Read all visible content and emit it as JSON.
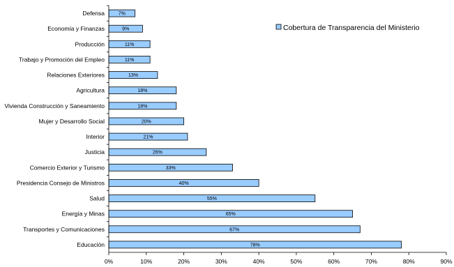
{
  "chart_data": {
    "type": "bar",
    "orientation": "horizontal",
    "categories": [
      "Defensa",
      "Economía y Finanzas",
      "Producción",
      "Trabajo y Promoción del Empleo",
      "Relaciones Exteriores",
      "Agricultura",
      "Vivienda Construcción y Saneamiento",
      "Mujer y Desarrollo Social",
      "Interior",
      "Justicia",
      "Comercio Exterior y Turismo",
      "Presidencia Consejo de Ministros",
      "Salud",
      "Energía y Minas",
      "Transportes y Comunicaciones",
      "Educación"
    ],
    "series": [
      {
        "name": "Cobertura de Transparencia del Ministerio",
        "values": [
          7,
          9,
          11,
          11,
          13,
          18,
          18,
          20,
          21,
          26,
          33,
          40,
          55,
          65,
          67,
          78
        ],
        "value_labels": [
          "7%",
          "9%",
          "11%",
          "11%",
          "13%",
          "18%",
          "18%",
          "20%",
          "21%",
          "26%",
          "33%",
          "40%",
          "55%",
          "65%",
          "67%",
          "78%"
        ],
        "color": "#99ccff"
      }
    ],
    "xlim": [
      0,
      90
    ],
    "xticks": [
      0,
      10,
      20,
      30,
      40,
      50,
      60,
      70,
      80,
      90
    ],
    "xtick_labels": [
      "0%",
      "10%",
      "20%",
      "30%",
      "40%",
      "50%",
      "60%",
      "70%",
      "80%",
      "90%"
    ],
    "grid": false,
    "legend_position": "top-right",
    "bar_edge_color": "#000000"
  }
}
